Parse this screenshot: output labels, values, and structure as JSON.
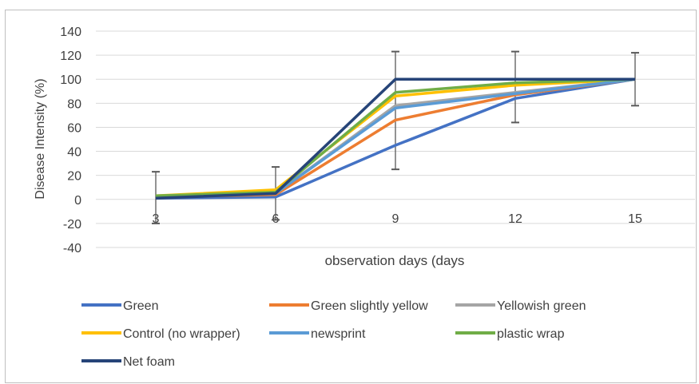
{
  "chart_data": {
    "type": "line",
    "title": "",
    "xlabel": "observation days (days",
    "ylabel": "Disease Intensity (%)",
    "categories": [
      "3",
      "6",
      "9",
      "12",
      "15"
    ],
    "ylim": [
      -40,
      140
    ],
    "yticks": [
      -40,
      -20,
      0,
      20,
      40,
      60,
      80,
      100,
      120,
      140
    ],
    "grid": true,
    "legend_position": "bottom",
    "series": [
      {
        "name": "Green",
        "color": "#4472C4",
        "values": [
          1,
          2,
          45,
          84,
          100
        ]
      },
      {
        "name": "Green slightly yellow",
        "color": "#ED7D31",
        "values": [
          2,
          4,
          66,
          87,
          100
        ]
      },
      {
        "name": "Yellowish green",
        "color": "#A5A5A5",
        "values": [
          2,
          5,
          78,
          89,
          100
        ]
      },
      {
        "name": "Control (no wrapper)",
        "color": "#FFC000",
        "values": [
          3,
          8,
          86,
          95,
          100
        ]
      },
      {
        "name": "newsprint",
        "color": "#5B9BD5",
        "values": [
          2,
          5,
          76,
          88,
          100
        ]
      },
      {
        "name": "plastic wrap",
        "color": "#70AD47",
        "values": [
          3,
          6,
          89,
          97,
          100
        ]
      },
      {
        "name": "Net foam",
        "color": "#264478",
        "values": [
          1,
          5,
          100,
          100,
          100
        ]
      }
    ],
    "error_bars": [
      {
        "x": "3",
        "low": -20,
        "high": 23
      },
      {
        "x": "6",
        "low": -17,
        "high": 27
      },
      {
        "x": "9",
        "low": 25,
        "high": 123
      },
      {
        "x": "12",
        "low": 64,
        "high": 123
      },
      {
        "x": "15",
        "low": 78,
        "high": 122
      }
    ]
  }
}
